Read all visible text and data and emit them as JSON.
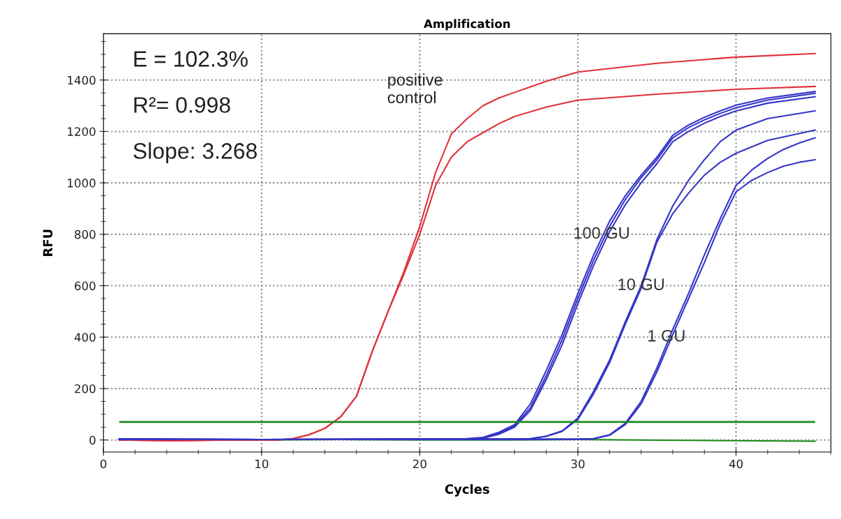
{
  "chart_data": {
    "type": "line",
    "title": "Amplification",
    "xlabel": "Cycles",
    "ylabel": "RFU",
    "xlim": [
      0,
      46
    ],
    "ylim": [
      -47,
      1580
    ],
    "xticks": [
      0,
      10,
      20,
      30,
      40
    ],
    "yticks": [
      0,
      200,
      400,
      600,
      800,
      1000,
      1200,
      1400
    ],
    "grid": true,
    "marker": "none",
    "line_style": "solid",
    "ref_lines": [
      {
        "axis": "y",
        "value": 70,
        "color": "#1a8a1a",
        "line_style": "solid"
      }
    ],
    "annotations": [
      "E = 102.3%",
      "R²= 0.998",
      "Slope: 3.268",
      "positive\ncontrol",
      {
        "text": "100 GU",
        "x": 31.5,
        "y": 800
      },
      {
        "text": "10 GU",
        "x": 34.0,
        "y": 600
      },
      {
        "text": "1 GU",
        "x": 35.6,
        "y": 400
      }
    ],
    "series": [
      {
        "color": "#1a8a1a",
        "x": [
          1,
          5,
          10,
          15,
          20,
          25,
          30,
          35,
          40,
          45
        ],
        "values": [
          0,
          0,
          0,
          2,
          0,
          0,
          2,
          -1,
          -3,
          -5
        ]
      },
      {
        "color": "#e0303a",
        "x": [
          1,
          4,
          8,
          11,
          12,
          13,
          14,
          15,
          16,
          17,
          18,
          19,
          20,
          21,
          22,
          23,
          24,
          25,
          26,
          28,
          30,
          35,
          40,
          45
        ],
        "values": [
          0,
          -3,
          0,
          0,
          5,
          20,
          45,
          90,
          170,
          345,
          500,
          655,
          830,
          1040,
          1190,
          1250,
          1300,
          1330,
          1352,
          1395,
          1431,
          1465,
          1489,
          1503
        ]
      },
      {
        "color": "#e0303a",
        "x": [
          1,
          4,
          8,
          11,
          12,
          13,
          14,
          15,
          16,
          17,
          18,
          19,
          20,
          21,
          22,
          23,
          24,
          25,
          26,
          28,
          30,
          35,
          40,
          45
        ],
        "values": [
          0,
          -3,
          0,
          0,
          5,
          20,
          45,
          90,
          170,
          345,
          500,
          645,
          800,
          990,
          1100,
          1160,
          1195,
          1230,
          1258,
          1295,
          1322,
          1345,
          1364,
          1375
        ]
      },
      {
        "color": "#3535c8",
        "x": [
          1,
          10,
          20,
          23,
          24,
          25,
          26,
          27,
          28,
          29,
          30,
          31,
          32,
          33,
          34,
          35,
          36,
          37,
          38,
          39,
          40,
          42,
          45
        ],
        "values": [
          3,
          2,
          3,
          5,
          10,
          30,
          60,
          140,
          270,
          410,
          570,
          720,
          850,
          950,
          1030,
          1100,
          1185,
          1225,
          1255,
          1280,
          1302,
          1330,
          1355
        ]
      },
      {
        "color": "#3535c8",
        "x": [
          1,
          10,
          20,
          23,
          24,
          25,
          26,
          27,
          28,
          29,
          30,
          31,
          32,
          33,
          34,
          35,
          36,
          37,
          38,
          39,
          40,
          42,
          45
        ],
        "values": [
          3,
          2,
          3,
          4,
          8,
          25,
          55,
          125,
          250,
          390,
          550,
          700,
          830,
          935,
          1020,
          1090,
          1175,
          1215,
          1245,
          1270,
          1292,
          1322,
          1348
        ]
      },
      {
        "color": "#3535c8",
        "x": [
          1,
          10,
          20,
          23,
          24,
          25,
          26,
          27,
          28,
          29,
          30,
          31,
          32,
          33,
          34,
          35,
          36,
          37,
          38,
          39,
          40,
          42,
          45
        ],
        "values": [
          3,
          2,
          3,
          4,
          7,
          22,
          50,
          115,
          235,
          370,
          530,
          680,
          810,
          915,
          1000,
          1075,
          1160,
          1200,
          1232,
          1258,
          1280,
          1310,
          1335
        ]
      },
      {
        "color": "#3535c8",
        "x": [
          1,
          10,
          20,
          26,
          27,
          28,
          29,
          30,
          31,
          32,
          33,
          34,
          35,
          36,
          37,
          38,
          39,
          40,
          42,
          45
        ],
        "values": [
          3,
          2,
          3,
          3,
          5,
          15,
          35,
          85,
          190,
          310,
          460,
          600,
          780,
          910,
          1010,
          1090,
          1160,
          1205,
          1250,
          1280
        ]
      },
      {
        "color": "#3535c8",
        "x": [
          1,
          10,
          20,
          26,
          27,
          28,
          29,
          30,
          31,
          32,
          33,
          34,
          35,
          36,
          37,
          38,
          39,
          40,
          42,
          45
        ],
        "values": [
          3,
          2,
          3,
          3,
          5,
          14,
          33,
          80,
          180,
          300,
          450,
          590,
          770,
          880,
          960,
          1030,
          1080,
          1115,
          1165,
          1205
        ]
      },
      {
        "color": "#3535c8",
        "x": [
          1,
          10,
          20,
          30,
          31,
          32,
          33,
          34,
          35,
          36,
          37,
          38,
          39,
          40,
          41,
          42,
          43,
          44,
          45
        ],
        "values": [
          3,
          2,
          3,
          3,
          5,
          20,
          65,
          150,
          280,
          430,
          570,
          720,
          860,
          990,
          1050,
          1095,
          1130,
          1155,
          1175
        ]
      },
      {
        "color": "#3535c8",
        "x": [
          1,
          10,
          20,
          30,
          31,
          32,
          33,
          34,
          35,
          36,
          37,
          38,
          39,
          40,
          41,
          42,
          43,
          44,
          45
        ],
        "values": [
          3,
          2,
          3,
          3,
          5,
          18,
          60,
          140,
          265,
          410,
          550,
          690,
          840,
          965,
          1010,
          1040,
          1065,
          1080,
          1090
        ]
      }
    ]
  }
}
